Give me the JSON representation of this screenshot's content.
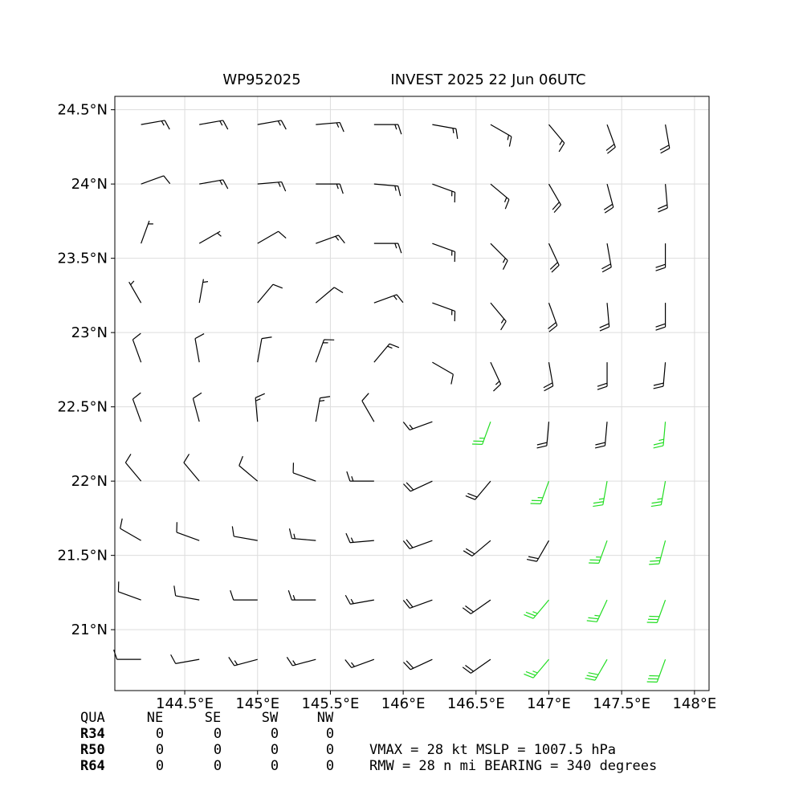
{
  "chart_data": {
    "type": "barbs",
    "title_left": "WP952025",
    "title_right": "INVEST 2025 22 Jun 06UTC",
    "xlim": [
      144.02,
      148.1
    ],
    "ylim": [
      20.59,
      24.59
    ],
    "xticks": [
      {
        "value": 144.5,
        "label": "144.5°E"
      },
      {
        "value": 145,
        "label": "145°E"
      },
      {
        "value": 145.5,
        "label": "145.5°E"
      },
      {
        "value": 146,
        "label": "146°E"
      },
      {
        "value": 146.5,
        "label": "146.5°E"
      },
      {
        "value": 147,
        "label": "147°E"
      },
      {
        "value": 147.5,
        "label": "147.5°E"
      },
      {
        "value": 148,
        "label": "148°E"
      }
    ],
    "yticks": [
      {
        "value": 21,
        "label": "21°N"
      },
      {
        "value": 21.5,
        "label": "21.5°N"
      },
      {
        "value": 22,
        "label": "22°N"
      },
      {
        "value": 22.5,
        "label": "22.5°N"
      },
      {
        "value": 23,
        "label": "23°N"
      },
      {
        "value": 23.5,
        "label": "23.5°N"
      },
      {
        "value": 24,
        "label": "24°N"
      },
      {
        "value": 24.5,
        "label": "24.5°N"
      }
    ],
    "grid": true,
    "color": "#000000",
    "highlight": {
      "min_speed": 25,
      "color": "#22dd22"
    },
    "barbs": {
      "lon": [
        144.2,
        144.6,
        145.0,
        145.4,
        145.8,
        146.2,
        146.6,
        147.0,
        147.4,
        147.8
      ],
      "lat": [
        24.4,
        24.0,
        23.6,
        23.2,
        22.8,
        22.4,
        22.0,
        21.6,
        21.2,
        20.8
      ],
      "direction": [
        [
          80,
          80,
          80,
          85,
          90,
          100,
          120,
          140,
          160,
          170
        ],
        [
          70,
          80,
          85,
          90,
          95,
          110,
          130,
          150,
          165,
          175
        ],
        [
          20,
          60,
          60,
          70,
          90,
          110,
          135,
          155,
          170,
          180
        ],
        [
          330,
          10,
          40,
          50,
          70,
          110,
          140,
          160,
          175,
          180
        ],
        [
          340,
          350,
          10,
          20,
          40,
          120,
          155,
          170,
          180,
          185
        ],
        [
          340,
          345,
          355,
          10,
          330,
          250,
          200,
          185,
          185,
          185
        ],
        [
          320,
          320,
          310,
          290,
          270,
          245,
          220,
          200,
          190,
          190
        ],
        [
          300,
          290,
          280,
          275,
          265,
          250,
          230,
          210,
          200,
          195
        ],
        [
          290,
          280,
          270,
          270,
          260,
          250,
          235,
          220,
          205,
          200
        ],
        [
          270,
          260,
          255,
          255,
          250,
          245,
          235,
          220,
          210,
          200
        ]
      ],
      "speed": [
        [
          15,
          15,
          15,
          15,
          15,
          15,
          15,
          15,
          20,
          20
        ],
        [
          10,
          15,
          15,
          15,
          15,
          15,
          15,
          20,
          20,
          20
        ],
        [
          5,
          5,
          10,
          15,
          15,
          15,
          15,
          20,
          20,
          20
        ],
        [
          5,
          5,
          10,
          10,
          15,
          15,
          15,
          20,
          20,
          20
        ],
        [
          10,
          10,
          10,
          15,
          15,
          10,
          15,
          20,
          20,
          20
        ],
        [
          10,
          10,
          15,
          15,
          10,
          15,
          25,
          20,
          20,
          25
        ],
        [
          10,
          10,
          10,
          10,
          15,
          20,
          20,
          25,
          25,
          25
        ],
        [
          10,
          10,
          10,
          15,
          15,
          20,
          20,
          20,
          25,
          25
        ],
        [
          10,
          10,
          10,
          15,
          15,
          20,
          20,
          25,
          25,
          30
        ],
        [
          10,
          10,
          15,
          15,
          15,
          20,
          20,
          25,
          30,
          30
        ]
      ]
    },
    "radii": {
      "header": "QUA",
      "quadrants": [
        "NE",
        "SE",
        "SW",
        "NW"
      ],
      "rows": [
        {
          "name": "R34",
          "values": [
            0,
            0,
            0,
            0
          ]
        },
        {
          "name": "R50",
          "values": [
            0,
            0,
            0,
            0
          ]
        },
        {
          "name": "R64",
          "values": [
            0,
            0,
            0,
            0
          ]
        }
      ]
    },
    "annotations": [
      "VMAX =  28 kt MSLP = 1007.5 hPa",
      "RMW =  28 n mi BEARING = 340 degrees"
    ]
  }
}
